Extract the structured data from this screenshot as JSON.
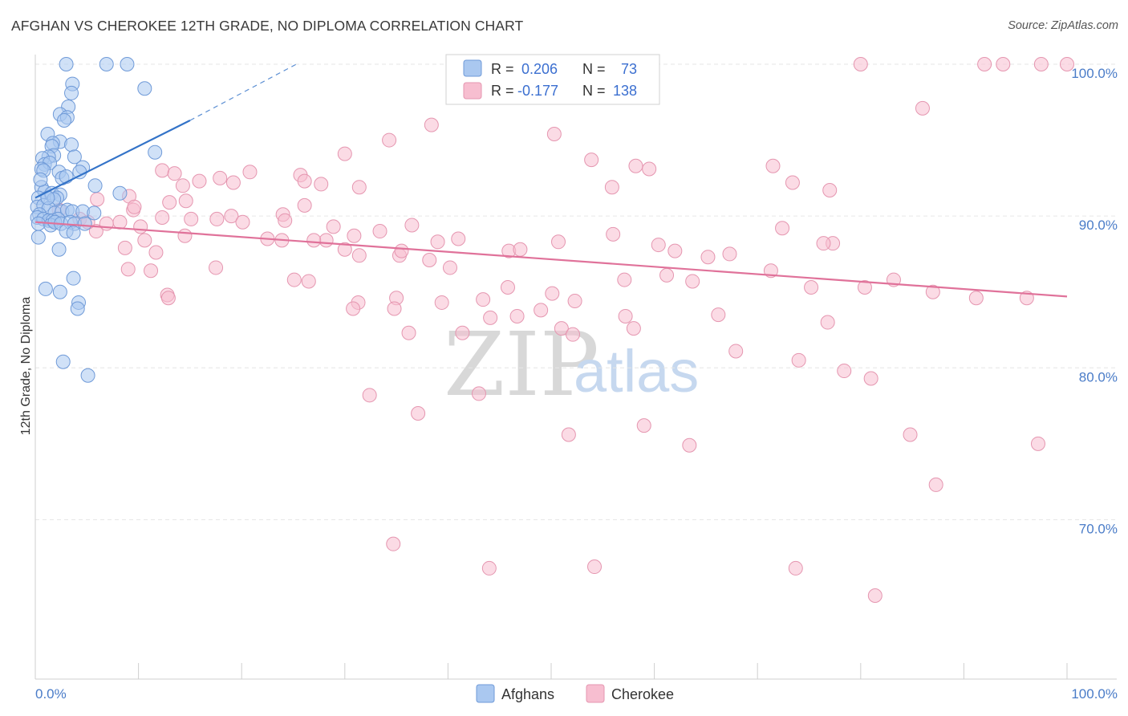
{
  "header": {
    "title": "AFGHAN VS CHEROKEE 12TH GRADE, NO DIPLOMA CORRELATION CHART",
    "source": "Source: ZipAtlas.com"
  },
  "watermark": {
    "zip": "ZIP",
    "atlas": "atlas"
  },
  "legend": {
    "rows": [
      {
        "r_label": "R =",
        "r_value": "0.206",
        "n_label": "N =",
        "n_value": "73",
        "color": "#aac8f0",
        "stroke": "#6f9ad8"
      },
      {
        "r_label": "R =",
        "r_value": "-0.177",
        "n_label": "N =",
        "n_value": "138",
        "color": "#f7bed0",
        "stroke": "#e596b0"
      }
    ]
  },
  "bottom_legend": [
    {
      "label": "Afghans",
      "color": "#aac8f0",
      "stroke": "#6f9ad8"
    },
    {
      "label": "Cherokee",
      "color": "#f7bed0",
      "stroke": "#e596b0"
    }
  ],
  "chart_data": {
    "type": "scatter",
    "title": "AFGHAN VS CHEROKEE 12TH GRADE, NO DIPLOMA CORRELATION CHART",
    "xlabel": "",
    "ylabel": "12th Grade, No Diploma",
    "xlim": [
      0,
      100
    ],
    "ylim": [
      59.5,
      101.5
    ],
    "x_tick_labels": [
      {
        "value": 0,
        "label": "0.0%"
      },
      {
        "value": 100,
        "label": "100.0%"
      }
    ],
    "y_tick_labels": [
      {
        "value": 100,
        "label": "100.0%"
      },
      {
        "value": 90,
        "label": "90.0%"
      },
      {
        "value": 80,
        "label": "80.0%"
      },
      {
        "value": 70,
        "label": "70.0%"
      }
    ],
    "y_gridlines": [
      100,
      90,
      80,
      70
    ],
    "x_minor_ticks": [
      10,
      20,
      30,
      40,
      50,
      60,
      70,
      80,
      90
    ],
    "series": [
      {
        "name": "Afghans",
        "color": "#aac8f0",
        "stroke": "#6f9ad8",
        "trend_color": "#3373c8",
        "trend": {
          "x0": 0,
          "y0": 91.2,
          "x1": 15,
          "y1": 96.3,
          "dashed_to_x": 25.3,
          "dashed_to_y": 100
        },
        "points": [
          [
            3.0,
            100.0
          ],
          [
            6.9,
            100.0
          ],
          [
            8.9,
            100.0
          ],
          [
            3.6,
            98.7
          ],
          [
            3.5,
            98.1
          ],
          [
            10.6,
            98.4
          ],
          [
            3.2,
            97.2
          ],
          [
            2.4,
            96.7
          ],
          [
            3.1,
            96.5
          ],
          [
            2.8,
            96.3
          ],
          [
            1.2,
            95.4
          ],
          [
            2.4,
            94.9
          ],
          [
            1.7,
            94.8
          ],
          [
            3.5,
            94.7
          ],
          [
            1.6,
            94.6
          ],
          [
            1.8,
            94.0
          ],
          [
            1.3,
            93.9
          ],
          [
            0.7,
            93.8
          ],
          [
            3.8,
            93.9
          ],
          [
            11.6,
            94.2
          ],
          [
            0.9,
            93.4
          ],
          [
            1.4,
            93.5
          ],
          [
            0.6,
            93.1
          ],
          [
            0.8,
            93.0
          ],
          [
            2.3,
            92.9
          ],
          [
            4.6,
            93.2
          ],
          [
            2.6,
            92.5
          ],
          [
            4.3,
            92.9
          ],
          [
            3.0,
            92.6
          ],
          [
            5.8,
            92.0
          ],
          [
            0.6,
            91.9
          ],
          [
            0.9,
            91.6
          ],
          [
            1.6,
            91.5
          ],
          [
            0.3,
            91.2
          ],
          [
            2.4,
            91.4
          ],
          [
            2.1,
            91.2
          ],
          [
            1.8,
            91.1
          ],
          [
            8.2,
            91.5
          ],
          [
            0.2,
            90.6
          ],
          [
            0.8,
            90.7
          ],
          [
            1.3,
            90.5
          ],
          [
            0.4,
            90.1
          ],
          [
            1.9,
            90.2
          ],
          [
            2.6,
            90.3
          ],
          [
            3.1,
            90.4
          ],
          [
            3.6,
            90.3
          ],
          [
            4.6,
            90.3
          ],
          [
            5.7,
            90.2
          ],
          [
            0.2,
            89.9
          ],
          [
            0.8,
            89.8
          ],
          [
            1.3,
            89.7
          ],
          [
            1.7,
            89.7
          ],
          [
            2.2,
            89.8
          ],
          [
            0.3,
            89.5
          ],
          [
            1.5,
            89.4
          ],
          [
            1.9,
            89.6
          ],
          [
            2.5,
            89.5
          ],
          [
            3.4,
            89.6
          ],
          [
            3.8,
            89.5
          ],
          [
            4.8,
            89.5
          ],
          [
            3.0,
            89.0
          ],
          [
            3.7,
            88.9
          ],
          [
            0.3,
            88.6
          ],
          [
            2.3,
            87.8
          ],
          [
            3.7,
            85.9
          ],
          [
            1.0,
            85.2
          ],
          [
            2.4,
            85.0
          ],
          [
            4.2,
            84.3
          ],
          [
            4.1,
            83.9
          ],
          [
            2.7,
            80.4
          ],
          [
            5.1,
            79.5
          ],
          [
            1.2,
            91.2
          ],
          [
            0.5,
            92.4
          ]
        ]
      },
      {
        "name": "Cherokee",
        "color": "#f7bed0",
        "stroke": "#e596b0",
        "trend_color": "#e0729a",
        "trend": {
          "x0": 0,
          "y0": 89.6,
          "x1": 100,
          "y1": 84.7
        },
        "points": [
          [
            47.1,
            100.0
          ],
          [
            52.7,
            100.0
          ],
          [
            56.0,
            100.0
          ],
          [
            80.0,
            100.0
          ],
          [
            92.0,
            100.0
          ],
          [
            93.8,
            100.0
          ],
          [
            97.5,
            100.0
          ],
          [
            100.0,
            100.0
          ],
          [
            86.0,
            97.1
          ],
          [
            38.4,
            96.0
          ],
          [
            50.3,
            95.4
          ],
          [
            34.3,
            95.0
          ],
          [
            30.0,
            94.1
          ],
          [
            53.9,
            93.7
          ],
          [
            58.2,
            93.3
          ],
          [
            59.5,
            93.1
          ],
          [
            71.5,
            93.3
          ],
          [
            12.3,
            93.0
          ],
          [
            20.8,
            92.9
          ],
          [
            25.7,
            92.7
          ],
          [
            17.9,
            92.5
          ],
          [
            13.5,
            92.8
          ],
          [
            26.1,
            92.3
          ],
          [
            27.7,
            92.1
          ],
          [
            15.9,
            92.3
          ],
          [
            14.3,
            92.0
          ],
          [
            19.2,
            92.2
          ],
          [
            31.4,
            91.9
          ],
          [
            55.9,
            91.9
          ],
          [
            73.4,
            92.2
          ],
          [
            77.0,
            91.7
          ],
          [
            9.1,
            91.3
          ],
          [
            6.0,
            91.1
          ],
          [
            14.6,
            91.0
          ],
          [
            13.0,
            90.9
          ],
          [
            9.5,
            90.4
          ],
          [
            26.1,
            90.7
          ],
          [
            24.0,
            90.1
          ],
          [
            19.0,
            90.0
          ],
          [
            17.6,
            89.8
          ],
          [
            20.1,
            89.6
          ],
          [
            24.2,
            89.7
          ],
          [
            36.5,
            89.4
          ],
          [
            28.9,
            89.3
          ],
          [
            33.4,
            89.0
          ],
          [
            30.9,
            88.7
          ],
          [
            39.0,
            88.3
          ],
          [
            41.0,
            88.5
          ],
          [
            10.2,
            89.3
          ],
          [
            10.6,
            88.4
          ],
          [
            8.7,
            87.9
          ],
          [
            14.5,
            88.7
          ],
          [
            22.5,
            88.5
          ],
          [
            23.9,
            88.4
          ],
          [
            28.2,
            88.4
          ],
          [
            27.0,
            88.4
          ],
          [
            30.0,
            87.8
          ],
          [
            31.4,
            87.4
          ],
          [
            35.3,
            87.4
          ],
          [
            35.5,
            87.7
          ],
          [
            38.2,
            87.1
          ],
          [
            40.2,
            86.6
          ],
          [
            45.9,
            87.7
          ],
          [
            47.0,
            87.8
          ],
          [
            50.7,
            88.3
          ],
          [
            56.0,
            88.8
          ],
          [
            60.4,
            88.1
          ],
          [
            62.0,
            87.7
          ],
          [
            65.2,
            87.3
          ],
          [
            67.3,
            87.5
          ],
          [
            72.4,
            89.2
          ],
          [
            77.3,
            88.2
          ],
          [
            76.4,
            88.2
          ],
          [
            8.2,
            89.6
          ],
          [
            5.9,
            89.0
          ],
          [
            4.3,
            89.8
          ],
          [
            5.1,
            89.6
          ],
          [
            6.9,
            89.5
          ],
          [
            2.3,
            90.4
          ],
          [
            9.6,
            90.6
          ],
          [
            12.3,
            89.9
          ],
          [
            15.1,
            89.8
          ],
          [
            11.7,
            87.6
          ],
          [
            9.0,
            86.5
          ],
          [
            11.2,
            86.4
          ],
          [
            17.5,
            86.6
          ],
          [
            26.5,
            85.7
          ],
          [
            25.1,
            85.8
          ],
          [
            31.3,
            84.3
          ],
          [
            35.0,
            84.6
          ],
          [
            43.4,
            84.5
          ],
          [
            45.8,
            85.3
          ],
          [
            50.1,
            84.9
          ],
          [
            52.3,
            84.4
          ],
          [
            57.1,
            85.8
          ],
          [
            61.2,
            86.1
          ],
          [
            63.7,
            85.7
          ],
          [
            71.3,
            86.4
          ],
          [
            75.2,
            85.3
          ],
          [
            80.4,
            85.3
          ],
          [
            83.2,
            85.8
          ],
          [
            87.0,
            85.0
          ],
          [
            91.2,
            84.6
          ],
          [
            96.1,
            84.6
          ],
          [
            12.8,
            84.8
          ],
          [
            12.9,
            84.6
          ],
          [
            30.8,
            83.9
          ],
          [
            34.8,
            83.9
          ],
          [
            39.4,
            84.3
          ],
          [
            44.1,
            83.3
          ],
          [
            46.7,
            83.4
          ],
          [
            49.0,
            83.8
          ],
          [
            57.2,
            83.4
          ],
          [
            58.0,
            82.6
          ],
          [
            66.2,
            83.5
          ],
          [
            76.8,
            83.0
          ],
          [
            36.2,
            82.3
          ],
          [
            41.4,
            82.3
          ],
          [
            51.0,
            82.6
          ],
          [
            52.1,
            82.2
          ],
          [
            67.9,
            81.1
          ],
          [
            74.0,
            80.5
          ],
          [
            81.0,
            79.3
          ],
          [
            78.4,
            79.8
          ],
          [
            32.4,
            78.2
          ],
          [
            37.1,
            77.0
          ],
          [
            43.0,
            78.3
          ],
          [
            51.7,
            75.6
          ],
          [
            59.0,
            76.2
          ],
          [
            63.4,
            74.9
          ],
          [
            84.8,
            75.6
          ],
          [
            97.2,
            75.0
          ],
          [
            87.3,
            72.3
          ],
          [
            34.7,
            68.4
          ],
          [
            44.0,
            66.8
          ],
          [
            54.2,
            66.9
          ],
          [
            73.7,
            66.8
          ],
          [
            81.4,
            65.0
          ]
        ]
      }
    ]
  }
}
